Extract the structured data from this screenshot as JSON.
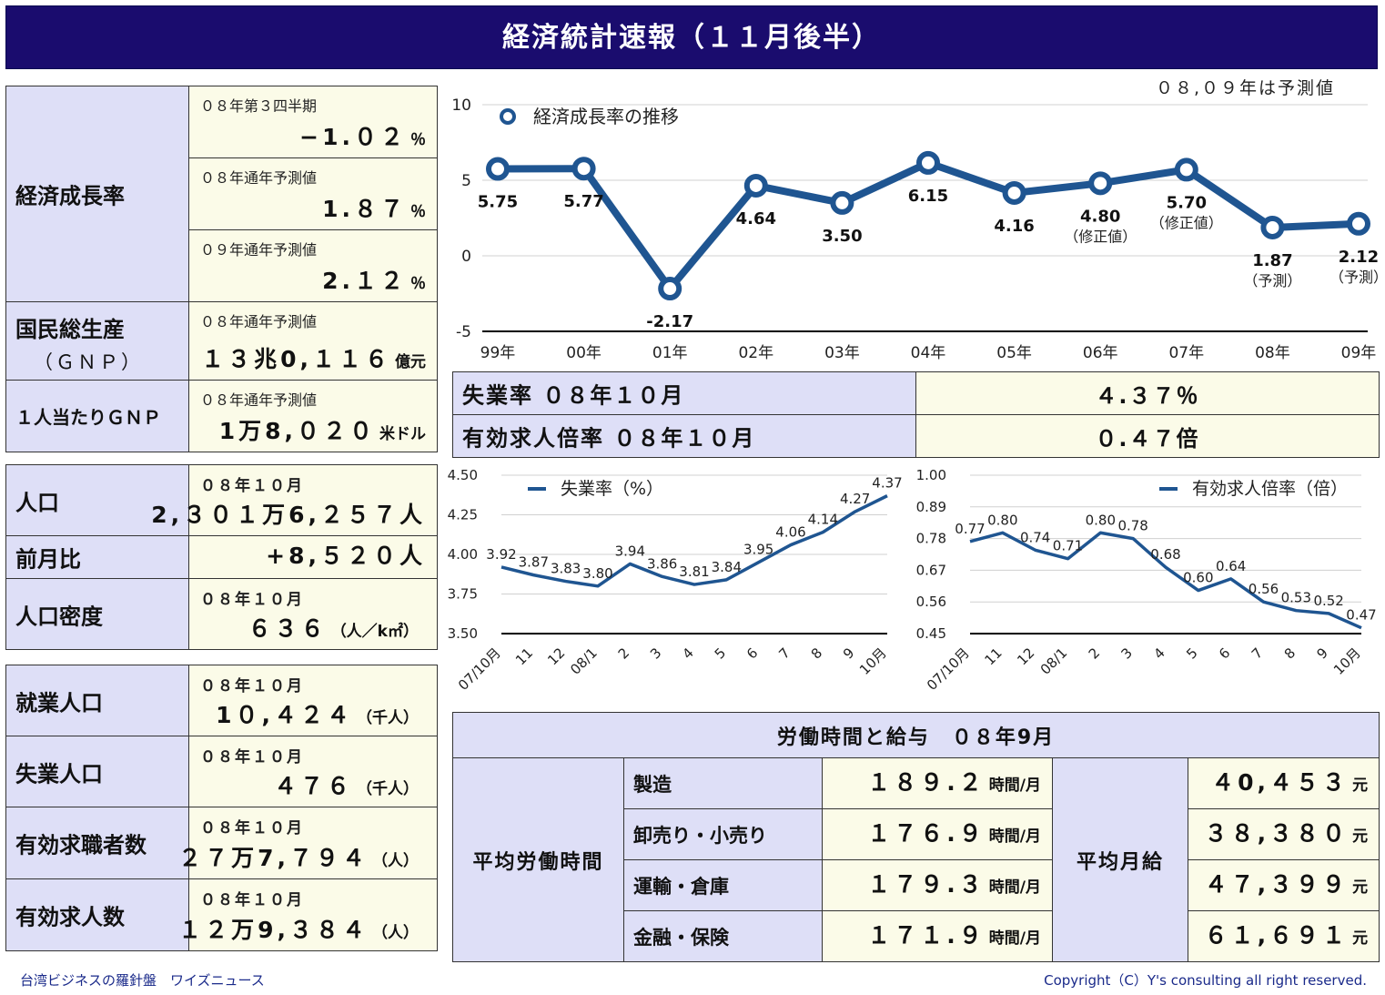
{
  "title": "経済統計速報（１１月後半）",
  "indicators": {
    "growth": {
      "label": "経済成長率",
      "rows": [
        {
          "period": "０８年第３四半期",
          "value": "−1.０２",
          "unit": "％"
        },
        {
          "period": "０８年通年予測値",
          "value": "1.８７",
          "unit": "％"
        },
        {
          "period": "０９年通年予測値",
          "value": "2.１２",
          "unit": "％"
        }
      ]
    },
    "gnp": {
      "label": "国民総生産",
      "label2": "（ＧＮＰ）",
      "period": "０８年通年予測値",
      "value": "１３兆0,１１６",
      "unit": "億元"
    },
    "gnp_per_capita": {
      "label": "１人当たりＧＮＰ",
      "period": "０８年通年予測値",
      "value": "1万8,０２０",
      "unit": "米ドル"
    }
  },
  "population": {
    "pop": {
      "label": "人口",
      "period": "０８年１０月",
      "value": "2,３０１万6,２５７人"
    },
    "mom": {
      "label": "前月比",
      "value": "+8,５２０人"
    },
    "density": {
      "label": "人口密度",
      "period": "０８年１０月",
      "value": "６３６",
      "unit": "（人／k㎡）"
    }
  },
  "employment": [
    {
      "label": "就業人口",
      "period": "０８年１０月",
      "value": "1０,４２４",
      "unit": "（千人）"
    },
    {
      "label": "失業人口",
      "period": "０８年１０月",
      "value": "４７６",
      "unit": "（千人）"
    },
    {
      "label": "有効求職者数",
      "period": "０８年１０月",
      "value": "２７万7,７９４",
      "unit": "（人）"
    },
    {
      "label": "有効求人数",
      "period": "０８年１０月",
      "value": "１２万9,３８４",
      "unit": "（人）"
    }
  ],
  "labor_summary": [
    {
      "label": "失業率 ０８年１０月",
      "value": "４.３７％"
    },
    {
      "label": "有効求人倍率 ０８年１０月",
      "value": "０.４７倍"
    }
  ],
  "wages": {
    "title": "労働時間と給与　０８年9月",
    "hours_label": "平均労働時間",
    "pay_label": "平均月給",
    "hours_unit": "時間/月",
    "pay_unit": "元",
    "rows": [
      {
        "industry": "製造",
        "hours": "１８９.２",
        "pay": "４0,４５３"
      },
      {
        "industry": "卸売り・小売り",
        "hours": "１７６.９",
        "pay": "３８,３８０"
      },
      {
        "industry": "運輸・倉庫",
        "hours": "１７９.３",
        "pay": "４７,３９９"
      },
      {
        "industry": "金融・保険",
        "hours": "１７１.９",
        "pay": "６１,６９１"
      }
    ]
  },
  "footer": {
    "left": "台湾ビジネスの羅針盤　ワイズニュース",
    "right": "Copyright（C）Y's consulting all right reserved."
  },
  "colors": {
    "header": "#1a0c6e",
    "label_bg": "#dedff7",
    "value_bg": "#fbfbe8",
    "series": "#1f5591"
  },
  "chart_data": [
    {
      "type": "line",
      "title": "経済成長率の推移",
      "note": "０８,０９年は予測値",
      "categories": [
        "99年",
        "00年",
        "01年",
        "02年",
        "03年",
        "04年",
        "05年",
        "06年",
        "07年",
        "08年",
        "09年"
      ],
      "series": [
        {
          "name": "経済成長率の推移",
          "values": [
            5.75,
            5.77,
            -2.17,
            4.64,
            3.5,
            6.15,
            4.16,
            4.8,
            5.7,
            1.87,
            2.12
          ]
        }
      ],
      "value_labels": [
        "5.75",
        "5.77",
        "-2.17",
        "4.64",
        "3.50",
        "6.15",
        "4.16",
        "4.80",
        "5.70",
        "1.87",
        "2.12"
      ],
      "annotations": [
        "",
        "",
        "",
        "",
        "",
        "",
        "",
        "（修正値）",
        "（修正値）",
        "（予測）",
        "（予測）"
      ],
      "ylim": [
        -5,
        10
      ],
      "yticks": [
        "10",
        "5",
        "0",
        "-5"
      ],
      "grid": true,
      "legend": "top-left"
    },
    {
      "type": "line",
      "categories": [
        "07/10月",
        "11",
        "12",
        "08/1",
        "2",
        "3",
        "4",
        "5",
        "6",
        "7",
        "8",
        "9",
        "10月"
      ],
      "series": [
        {
          "name": "失業率（%）",
          "values": [
            3.92,
            3.87,
            3.83,
            3.8,
            3.94,
            3.86,
            3.81,
            3.84,
            3.95,
            4.06,
            4.14,
            4.27,
            4.37
          ]
        }
      ],
      "value_labels": [
        "3.92",
        "3.87",
        "3.83",
        "3.80",
        "3.94",
        "3.86",
        "3.81",
        "3.84",
        "3.95",
        "4.06",
        "4.14",
        "4.27",
        "4.37"
      ],
      "ylim": [
        3.5,
        4.5
      ],
      "yticks": [
        "4.50",
        "4.25",
        "4.00",
        "3.75",
        "3.50"
      ],
      "grid": true,
      "legend": "top"
    },
    {
      "type": "line",
      "categories": [
        "07/10月",
        "11",
        "12",
        "08/1",
        "2",
        "3",
        "4",
        "5",
        "6",
        "7",
        "8",
        "9",
        "10月"
      ],
      "series": [
        {
          "name": "有効求人倍率（倍）",
          "values": [
            0.77,
            0.8,
            0.74,
            0.71,
            0.8,
            0.78,
            0.68,
            0.6,
            0.64,
            0.56,
            0.53,
            0.52,
            0.47
          ]
        }
      ],
      "value_labels": [
        "0.77",
        "0.80",
        "0.74",
        "0.71",
        "0.80",
        "0.78",
        "0.68",
        "0.60",
        "0.64",
        "0.56",
        "0.53",
        "0.52",
        "0.47"
      ],
      "ylim": [
        0.45,
        1.0
      ],
      "yticks": [
        "1.00",
        "0.89",
        "0.78",
        "0.67",
        "0.56",
        "0.45"
      ],
      "grid": true,
      "legend": "top-right"
    }
  ]
}
